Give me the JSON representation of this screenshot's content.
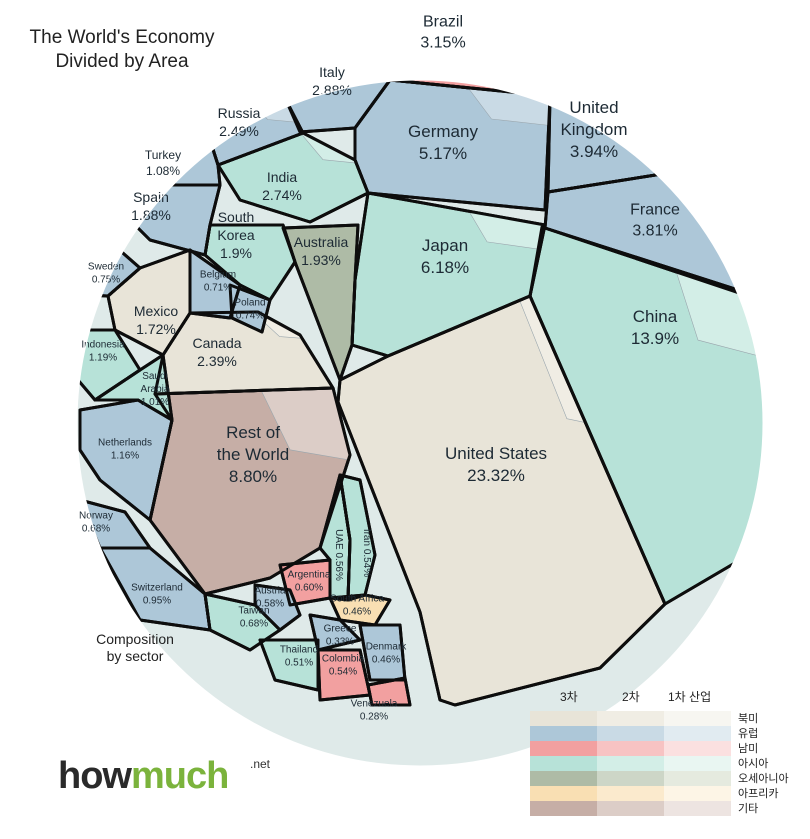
{
  "title_line1": "The World's Economy",
  "title_line2": "Divided by Area",
  "subcaption_line1": "Composition",
  "subcaption_line2": "by sector",
  "logo": {
    "how": "how",
    "much": "much",
    "net": ".net"
  },
  "legend": {
    "sector_headers": [
      "3차",
      "2차",
      "1차 산업"
    ],
    "regions": [
      "북미",
      "유럽",
      "남미",
      "아시아",
      "오세아니아",
      "아프리카",
      "기타"
    ]
  },
  "chart_data": {
    "type": "voronoi-treemap",
    "title": "The World's Economy Divided by Area",
    "unit": "%",
    "items": [
      {
        "name": "United States",
        "value": 23.32,
        "region": "북미"
      },
      {
        "name": "China",
        "value": 13.9,
        "region": "아시아"
      },
      {
        "name": "Rest of the World",
        "value": 8.8,
        "region": "기타"
      },
      {
        "name": "Japan",
        "value": 6.18,
        "region": "아시아"
      },
      {
        "name": "Germany",
        "value": 5.17,
        "region": "유럽"
      },
      {
        "name": "United Kingdom",
        "value": 3.94,
        "region": "유럽"
      },
      {
        "name": "France",
        "value": 3.81,
        "region": "유럽"
      },
      {
        "name": "Brazil",
        "value": 3.15,
        "region": "남미"
      },
      {
        "name": "Italy",
        "value": 2.88,
        "region": "유럽"
      },
      {
        "name": "India",
        "value": 2.74,
        "region": "아시아"
      },
      {
        "name": "Russia",
        "value": 2.49,
        "region": "유럽"
      },
      {
        "name": "Canada",
        "value": 2.39,
        "region": "북미"
      },
      {
        "name": "Australia",
        "value": 1.93,
        "region": "오세아니아"
      },
      {
        "name": "South Korea",
        "value": 1.9,
        "region": "아시아"
      },
      {
        "name": "Spain",
        "value": 1.88,
        "region": "유럽"
      },
      {
        "name": "Mexico",
        "value": 1.72,
        "region": "북미"
      },
      {
        "name": "Indonesia",
        "value": 1.19,
        "region": "아시아"
      },
      {
        "name": "Netherlands",
        "value": 1.16,
        "region": "유럽"
      },
      {
        "name": "Turkey",
        "value": 1.08,
        "region": "유럽"
      },
      {
        "name": "Saudi Arabia",
        "value": 1.01,
        "region": "아시아"
      },
      {
        "name": "Switzerland",
        "value": 0.95,
        "region": "유럽"
      },
      {
        "name": "Sweden",
        "value": 0.75,
        "region": "유럽"
      },
      {
        "name": "Poland",
        "value": 0.74,
        "region": "유럽"
      },
      {
        "name": "Belgium",
        "value": 0.71,
        "region": "유럽"
      },
      {
        "name": "Norway",
        "value": 0.68,
        "region": "유럽"
      },
      {
        "name": "Taiwan",
        "value": 0.68,
        "region": "아시아"
      },
      {
        "name": "Argentina",
        "value": 0.6,
        "region": "남미"
      },
      {
        "name": "Austria",
        "value": 0.58,
        "region": "유럽"
      },
      {
        "name": "UAE",
        "value": 0.56,
        "region": "아시아"
      },
      {
        "name": "Iran",
        "value": 0.54,
        "region": "아시아"
      },
      {
        "name": "Colombia",
        "value": 0.54,
        "region": "남미"
      },
      {
        "name": "Thailand",
        "value": 0.51,
        "region": "아시아"
      },
      {
        "name": "South Africa",
        "value": 0.46,
        "region": "아프리카"
      },
      {
        "name": "Denmark",
        "value": 0.46,
        "region": "유럽"
      },
      {
        "name": "Greece",
        "value": 0.33,
        "region": "유럽"
      },
      {
        "name": "Venezuela",
        "value": 0.28,
        "region": "남미"
      }
    ],
    "region_colors": {
      "북미": [
        "#e8e4d8",
        "#f0ede4",
        "#f7f6f1"
      ],
      "유럽": [
        "#adc7d8",
        "#c9dae5",
        "#e1ebf1"
      ],
      "남미": [
        "#f2a0a0",
        "#f7c3c3",
        "#fbe0e0"
      ],
      "아시아": [
        "#b7e2d8",
        "#d3eee7",
        "#e9f6f2"
      ],
      "오세아니아": [
        "#aebba6",
        "#cdd6c7",
        "#e5eadf"
      ],
      "아프리카": [
        "#f9dfb3",
        "#fbeacd",
        "#fdf5e6"
      ],
      "기타": [
        "#c6aea6",
        "#dccdc7",
        "#ede4e1"
      ]
    }
  }
}
